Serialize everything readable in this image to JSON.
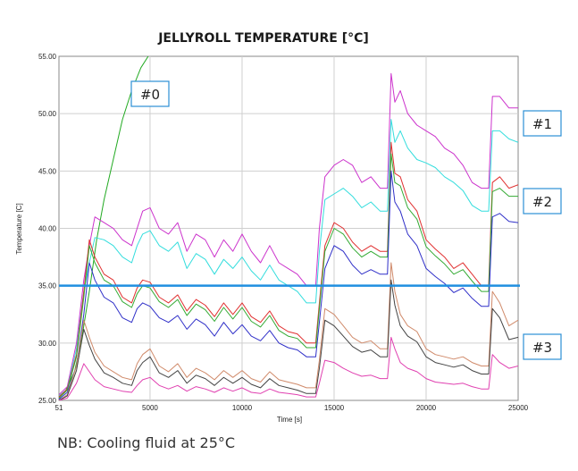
{
  "note": "NB: Cooling fluid at 25°C",
  "chart_data": {
    "type": "line",
    "title": "JELLYROLL TEMPERATURE [°C]",
    "xlabel": "Time [s]",
    "ylabel": "Temperature [C]",
    "xlim": [
      51,
      25000
    ],
    "ylim": [
      25,
      55
    ],
    "x_ticks": [
      51,
      5000,
      10000,
      15000,
      20000,
      25000
    ],
    "x_tick_labels": [
      "51",
      "5000",
      "10000",
      "15000",
      "20000",
      "25000"
    ],
    "y_ticks": [
      25,
      30,
      35,
      40,
      45,
      50,
      55
    ],
    "y_tick_labels": [
      "25.00",
      "30.00",
      "35.00",
      "40.00",
      "45.00",
      "50.00",
      "55.00"
    ],
    "grid": true,
    "reference_line": {
      "y": 35,
      "color": "#1f8fe0"
    },
    "tags": [
      {
        "label": "#0",
        "group": "#0"
      },
      {
        "label": "#1",
        "group": "#1"
      },
      {
        "label": "#2",
        "group": "#2"
      },
      {
        "label": "#3",
        "group": "#3"
      }
    ],
    "series": [
      {
        "group": "#0",
        "color": "#22aa22",
        "x": [
          51,
          400,
          900,
          1300,
          1700,
          2100,
          2500,
          3000,
          3500,
          4000,
          4500,
          4900
        ],
        "y": [
          25.3,
          25.8,
          27.5,
          30.5,
          34.5,
          39,
          42.5,
          46,
          49.5,
          52,
          54,
          55
        ]
      },
      {
        "group": "#1",
        "color": "#cc33cc",
        "x": [
          51,
          500,
          1000,
          1400,
          1700,
          2000,
          2500,
          3000,
          3500,
          4000,
          4300,
          4600,
          5000,
          5500,
          6000,
          6500,
          7000,
          7500,
          8000,
          8500,
          9000,
          9500,
          10000,
          10500,
          11000,
          11500,
          12000,
          12500,
          13000,
          13500,
          14000,
          14200,
          14500,
          15000,
          15500,
          16000,
          16500,
          17000,
          17500,
          17900,
          18100,
          18300,
          18600,
          19000,
          19500,
          20000,
          20500,
          21000,
          21500,
          22000,
          22500,
          23000,
          23400,
          23600,
          24000,
          24500,
          25000
        ],
        "y": [
          25.5,
          26.2,
          30,
          35.5,
          38.5,
          41,
          40.5,
          40,
          39,
          38.5,
          40,
          41.5,
          41.8,
          40,
          39.5,
          40.5,
          38,
          39.5,
          39,
          37.5,
          39,
          38,
          39.5,
          38,
          37,
          38.5,
          37,
          36.5,
          36,
          35,
          35,
          40,
          44.5,
          45.5,
          46,
          45.5,
          44,
          44.5,
          43.5,
          43.5,
          53.5,
          51,
          52,
          50,
          49,
          48.5,
          48,
          47,
          46.5,
          45.5,
          44,
          43.5,
          43.5,
          51.5,
          51.5,
          50.5,
          50.5
        ]
      },
      {
        "group": "#1",
        "color": "#33dddd",
        "x": [
          51,
          500,
          1000,
          1400,
          1700,
          2000,
          2500,
          3000,
          3500,
          4000,
          4300,
          4600,
          5000,
          5500,
          6000,
          6500,
          7000,
          7500,
          8000,
          8500,
          9000,
          9500,
          10000,
          10500,
          11000,
          11500,
          12000,
          12500,
          13000,
          13500,
          14000,
          14200,
          14500,
          15000,
          15500,
          16000,
          16500,
          17000,
          17500,
          17900,
          18100,
          18300,
          18600,
          19000,
          19500,
          20000,
          20500,
          21000,
          21500,
          22000,
          22500,
          23000,
          23400,
          23600,
          24000,
          24500,
          25000
        ],
        "y": [
          25.4,
          26,
          29.5,
          34.5,
          37,
          39.2,
          39,
          38.5,
          37.5,
          37,
          38.5,
          39.5,
          39.8,
          38.5,
          38,
          38.8,
          36.5,
          37.8,
          37.3,
          36,
          37.3,
          36.5,
          37.5,
          36.3,
          35.5,
          36.8,
          35.5,
          35,
          34.5,
          33.5,
          33.5,
          38,
          42.5,
          43,
          43.5,
          42.8,
          41.8,
          42.3,
          41.5,
          41.5,
          49.5,
          47.5,
          48.5,
          47,
          46,
          45.7,
          45.3,
          44.5,
          44,
          43.3,
          42,
          41.5,
          41.5,
          48.5,
          48.5,
          47.8,
          47.5
        ]
      },
      {
        "group": "#2",
        "color": "#e03030",
        "x": [
          51,
          500,
          1000,
          1400,
          1700,
          2000,
          2500,
          3000,
          3500,
          4000,
          4300,
          4600,
          5000,
          5500,
          6000,
          6500,
          7000,
          7500,
          8000,
          8500,
          9000,
          9500,
          10000,
          10500,
          11000,
          11500,
          12000,
          12500,
          13000,
          13500,
          14000,
          14200,
          14500,
          15000,
          15500,
          16000,
          16500,
          17000,
          17500,
          17900,
          18100,
          18300,
          18600,
          19000,
          19500,
          20000,
          20500,
          21000,
          21500,
          22000,
          22500,
          23000,
          23400,
          23600,
          24000,
          24500,
          25000
        ],
        "y": [
          25.3,
          26,
          29,
          34.5,
          39,
          37.5,
          36,
          35.5,
          34,
          33.5,
          34.8,
          35.5,
          35.3,
          34,
          33.5,
          34.2,
          32.8,
          33.8,
          33.3,
          32.3,
          33.5,
          32.5,
          33.5,
          32.3,
          31.8,
          32.8,
          31.5,
          31,
          30.8,
          30,
          30,
          33.5,
          38.5,
          40.5,
          40,
          38.8,
          38,
          38.5,
          38,
          38,
          47.5,
          44.8,
          44.5,
          42.5,
          41.5,
          39,
          38.2,
          37.5,
          36.5,
          37,
          36,
          35,
          35,
          44,
          44.5,
          43.5,
          43.8
        ]
      },
      {
        "group": "#2",
        "color": "#33aa33",
        "x": [
          51,
          500,
          1000,
          1400,
          1700,
          2000,
          2500,
          3000,
          3500,
          4000,
          4300,
          4600,
          5000,
          5500,
          6000,
          6500,
          7000,
          7500,
          8000,
          8500,
          9000,
          9500,
          10000,
          10500,
          11000,
          11500,
          12000,
          12500,
          13000,
          13500,
          14000,
          14200,
          14500,
          15000,
          15500,
          16000,
          16500,
          17000,
          17500,
          17900,
          18100,
          18300,
          18600,
          19000,
          19500,
          20000,
          20500,
          21000,
          21500,
          22000,
          22500,
          23000,
          23400,
          23600,
          24000,
          24500,
          25000
        ],
        "y": [
          25.2,
          25.9,
          28.8,
          34,
          38.5,
          37,
          35.5,
          35,
          33.6,
          33.1,
          34.3,
          35,
          34.8,
          33.6,
          33.1,
          33.8,
          32.4,
          33.4,
          32.9,
          31.9,
          33.1,
          32.1,
          33.1,
          31.9,
          31.4,
          32.4,
          31.1,
          30.6,
          30.4,
          29.6,
          29.6,
          33,
          38,
          40,
          39.5,
          38.3,
          37.5,
          38,
          37.5,
          37.5,
          46.5,
          44,
          43.7,
          41.8,
          40.8,
          38.4,
          37.6,
          36.9,
          36,
          36.4,
          35.4,
          34.5,
          34.5,
          43.2,
          43.5,
          42.8,
          42.8
        ]
      },
      {
        "group": "#2",
        "color": "#2f2fc8",
        "x": [
          51,
          500,
          1000,
          1400,
          1700,
          2000,
          2500,
          3000,
          3500,
          4000,
          4300,
          4600,
          5000,
          5500,
          6000,
          6500,
          7000,
          7500,
          8000,
          8500,
          9000,
          9500,
          10000,
          10500,
          11000,
          11500,
          12000,
          12500,
          13000,
          13500,
          14000,
          14200,
          14500,
          15000,
          15500,
          16000,
          16500,
          17000,
          17500,
          17900,
          18100,
          18300,
          18600,
          19000,
          19500,
          20000,
          20500,
          21000,
          21500,
          22000,
          22500,
          23000,
          23400,
          23600,
          24000,
          24500,
          25000
        ],
        "y": [
          25.1,
          25.7,
          28,
          32.5,
          37,
          35.5,
          34,
          33.5,
          32.2,
          31.8,
          33,
          33.5,
          33.2,
          32.2,
          31.8,
          32.4,
          31.2,
          32.1,
          31.6,
          30.6,
          31.8,
          30.8,
          31.6,
          30.6,
          30.2,
          31.1,
          30,
          29.6,
          29.4,
          28.8,
          28.8,
          31.8,
          36.5,
          38.5,
          38,
          36.8,
          36,
          36.4,
          36,
          36,
          45,
          42.3,
          41.5,
          39.5,
          38.5,
          36.5,
          35.8,
          35.2,
          34.4,
          34.8,
          33.9,
          33.2,
          33.2,
          41,
          41.3,
          40.6,
          40.5
        ]
      },
      {
        "group": "#3",
        "color": "#d08a6a",
        "x": [
          51,
          500,
          1000,
          1400,
          1700,
          2000,
          2500,
          3000,
          3500,
          4000,
          4300,
          4600,
          5000,
          5500,
          6000,
          6500,
          7000,
          7500,
          8000,
          8500,
          9000,
          9500,
          10000,
          10500,
          11000,
          11500,
          12000,
          12500,
          13000,
          13500,
          14000,
          14200,
          14500,
          15000,
          15500,
          16000,
          16500,
          17000,
          17500,
          17900,
          18100,
          18300,
          18600,
          19000,
          19500,
          20000,
          20500,
          21000,
          21500,
          22000,
          22500,
          23000,
          23400,
          23600,
          24000,
          24500,
          25000
        ],
        "y": [
          25,
          25.5,
          28,
          32,
          30.5,
          29.2,
          28,
          27.5,
          27,
          26.8,
          28.2,
          29,
          29.5,
          28,
          27.5,
          28.2,
          27,
          27.8,
          27.4,
          26.8,
          27.6,
          27,
          27.6,
          26.9,
          26.6,
          27.5,
          26.8,
          26.6,
          26.4,
          26.1,
          26.1,
          28.5,
          33,
          32.5,
          31.5,
          30.5,
          30,
          30.2,
          29.5,
          29.5,
          37,
          34.5,
          32.5,
          31.5,
          31,
          29.5,
          29,
          28.8,
          28.6,
          28.8,
          28.3,
          28,
          28,
          34.5,
          33.5,
          31.5,
          32
        ]
      },
      {
        "group": "#3",
        "color": "#444444",
        "x": [
          51,
          500,
          1000,
          1400,
          1700,
          2000,
          2500,
          3000,
          3500,
          4000,
          4300,
          4600,
          5000,
          5500,
          6000,
          6500,
          7000,
          7500,
          8000,
          8500,
          9000,
          9500,
          10000,
          10500,
          11000,
          11500,
          12000,
          12500,
          13000,
          13500,
          14000,
          14200,
          14500,
          15000,
          15500,
          16000,
          16500,
          17000,
          17500,
          17900,
          18100,
          18300,
          18600,
          19000,
          19500,
          20000,
          20500,
          21000,
          21500,
          22000,
          22500,
          23000,
          23400,
          23600,
          24000,
          24500,
          25000
        ],
        "y": [
          25,
          25.4,
          27.6,
          31.2,
          29.8,
          28.6,
          27.4,
          27,
          26.5,
          26.3,
          27.6,
          28.3,
          28.8,
          27.4,
          27,
          27.6,
          26.5,
          27.2,
          26.9,
          26.3,
          27,
          26.5,
          27,
          26.4,
          26.1,
          26.9,
          26.3,
          26.1,
          25.9,
          25.6,
          25.6,
          27.8,
          32,
          31.5,
          30.6,
          29.7,
          29.2,
          29.4,
          28.8,
          28.8,
          35.5,
          33.3,
          31.5,
          30.6,
          30.1,
          28.8,
          28.3,
          28.1,
          27.9,
          28.1,
          27.6,
          27.3,
          27.3,
          33,
          32.2,
          30.3,
          30.5
        ]
      },
      {
        "group": "#3",
        "color": "#e040b0",
        "x": [
          51,
          500,
          1000,
          1400,
          1700,
          2000,
          2500,
          3000,
          3500,
          4000,
          4300,
          4600,
          5000,
          5500,
          6000,
          6500,
          7000,
          7500,
          8000,
          8500,
          9000,
          9500,
          10000,
          10500,
          11000,
          11500,
          12000,
          12500,
          13000,
          13500,
          14000,
          14200,
          14500,
          15000,
          15500,
          16000,
          16500,
          17000,
          17500,
          17900,
          18100,
          18300,
          18600,
          19000,
          19500,
          20000,
          20500,
          21000,
          21500,
          22000,
          22500,
          23000,
          23400,
          23600,
          24000,
          24500,
          25000
        ],
        "y": [
          25,
          25.2,
          26.5,
          28.2,
          27.5,
          26.8,
          26.2,
          26,
          25.8,
          25.7,
          26.3,
          26.8,
          27,
          26.3,
          26,
          26.3,
          25.8,
          26.2,
          26,
          25.7,
          26.1,
          25.8,
          26.1,
          25.7,
          25.6,
          26,
          25.7,
          25.6,
          25.5,
          25.3,
          25.3,
          26.5,
          28.5,
          28.3,
          27.8,
          27.4,
          27.1,
          27.2,
          26.9,
          26.9,
          30.5,
          29.5,
          28.3,
          27.8,
          27.5,
          26.9,
          26.6,
          26.5,
          26.4,
          26.5,
          26.2,
          26,
          26,
          29,
          28.3,
          27.8,
          28
        ]
      }
    ]
  }
}
